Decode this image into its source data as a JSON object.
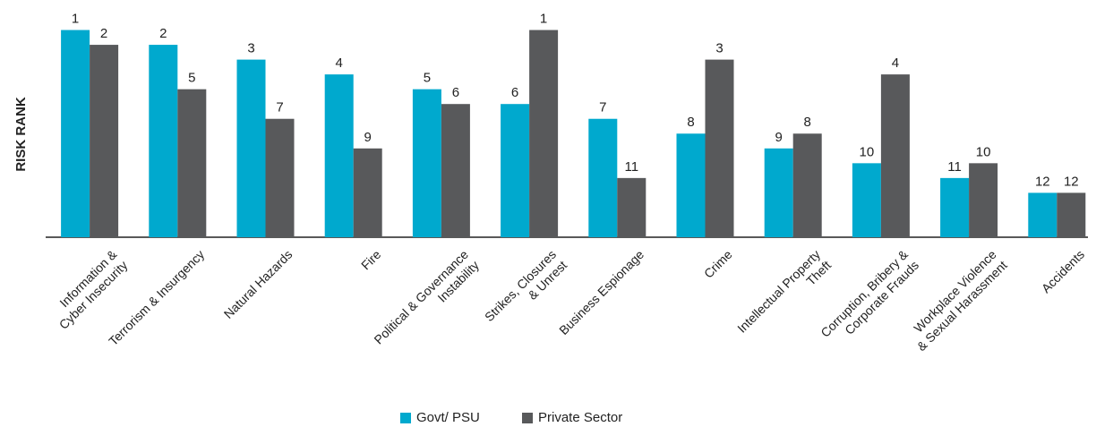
{
  "chart_data": {
    "type": "bar",
    "y_label": "RISK RANK",
    "categories": [
      "Information &\nCyber Insecurity",
      "Terrorism & Insurgency",
      "Natural Hazards",
      "Fire",
      "Political & Governance\nInstability",
      "Strikes, Closures\n& Unrest",
      "Business Espionage",
      "Crime",
      "Intellectual Property\nTheft",
      "Corruption, Bribery &\nCorporate Frauds",
      "Workplace Violence\n& Sexual Harassment",
      "Accidents"
    ],
    "series": [
      {
        "name": "Govt/ PSU",
        "color": "#00a9ce",
        "values": [
          1,
          2,
          3,
          4,
          5,
          6,
          7,
          8,
          9,
          10,
          11,
          12
        ]
      },
      {
        "name": "Private Sector",
        "color": "#58595b",
        "values": [
          2,
          5,
          7,
          9,
          6,
          1,
          11,
          3,
          8,
          4,
          10,
          12
        ]
      }
    ],
    "ylim": [
      15,
      0
    ],
    "legend": "bottom"
  }
}
